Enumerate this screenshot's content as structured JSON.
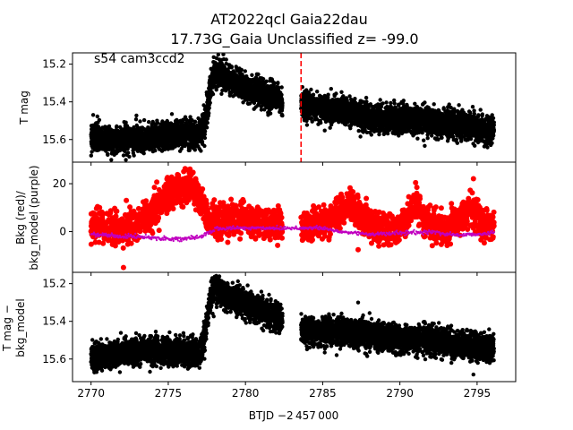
{
  "figure": {
    "title_line1": "AT2022qcl  Gaia22dau",
    "title_line2": "17.73G_Gaia Unclassified z= -99.0",
    "annotation": "s54 cam3ccd2",
    "xlabel": "BTJD −2 457 000"
  },
  "chart_data": [
    {
      "type": "scatter",
      "panel": "top",
      "ylabel": "T mag",
      "y_inverted": true,
      "xlim": [
        2768.8,
        2797.5
      ],
      "ylim": [
        15.72,
        15.14
      ],
      "yticks": [
        15.2,
        15.4,
        15.6
      ],
      "ytick_labels": [
        "15.2",
        "15.4",
        "15.6"
      ],
      "marker_color": "#000000",
      "vline": {
        "x": 2783.6,
        "color": "#ff0000",
        "style": "dashed"
      },
      "series": [
        {
          "segments": [
            {
              "x": [
                2770.0,
                2771.0,
                2772.0,
                2773.0,
                2774.0,
                2775.0,
                2776.0,
                2777.0,
                2777.4,
                2777.7,
                2778.0,
                2778.5,
                2779.0,
                2779.5,
                2780.0,
                2780.5,
                2781.0,
                2781.5,
                2782.0,
                2782.4
              ],
              "y": [
                15.59,
                15.6,
                15.6,
                15.59,
                15.59,
                15.57,
                15.57,
                15.57,
                15.5,
                15.33,
                15.25,
                15.26,
                15.29,
                15.3,
                15.33,
                15.34,
                15.35,
                15.37,
                15.37,
                15.4
              ]
            },
            {
              "x": [
                2783.6,
                2784.5,
                2785.5,
                2786.5,
                2787.5,
                2788.5,
                2789.5,
                2790.5,
                2791.5,
                2792.5,
                2793.5,
                2794.5,
                2795.5,
                2796.1
              ],
              "y": [
                15.41,
                15.43,
                15.44,
                15.45,
                15.47,
                15.48,
                15.49,
                15.49,
                15.5,
                15.51,
                15.52,
                15.53,
                15.55,
                15.55
              ]
            }
          ],
          "scatter": 0.035
        }
      ]
    },
    {
      "type": "scatter",
      "panel": "middle",
      "ylabel_line1": "Bkg (red)/",
      "ylabel_line2": "bkg_model (purple)",
      "xlim": [
        2768.8,
        2797.5
      ],
      "ylim": [
        -17,
        29
      ],
      "yticks": [
        0,
        20
      ],
      "ytick_labels": [
        "0",
        "20"
      ],
      "series": [
        {
          "color": "#ff0000",
          "segments": [
            {
              "x": [
                2770.0,
                2771.0,
                2772.0,
                2773.0,
                2773.7,
                2774.5,
                2775.0,
                2775.7,
                2776.5,
                2777.2,
                2777.6,
                2778.0,
                2779.0,
                2780.0,
                2781.0,
                2782.0,
                2782.4
              ],
              "y": [
                2,
                1,
                1,
                3,
                7,
                12,
                15,
                18,
                18,
                12,
                5,
                4,
                5,
                6,
                4,
                3,
                4
              ]
            },
            {
              "x": [
                2783.6,
                2784.5,
                2785.3,
                2786.0,
                2786.8,
                2787.5,
                2788.5,
                2789.5,
                2790.3,
                2791.0,
                2792.0,
                2793.0,
                2794.0,
                2794.6,
                2795.3,
                2796.1
              ],
              "y": [
                1,
                3,
                4,
                8,
                12,
                6,
                2,
                1,
                4,
                12,
                3,
                1,
                5,
                10,
                3,
                2
              ]
            }
          ],
          "scatter": 3.2,
          "outliers": [
            {
              "x": 2772.1,
              "y": -15
            }
          ]
        },
        {
          "color": "#c000c0",
          "segments": [
            {
              "x": [
                2770.0,
                2771.0,
                2772.0,
                2773.0,
                2774.0,
                2775.0,
                2776.0,
                2777.0,
                2778.0,
                2779.0,
                2780.0,
                2781.0,
                2782.0,
                2783.0,
                2784.0,
                2785.0,
                2786.0,
                2787.0,
                2788.0,
                2789.0,
                2790.0,
                2791.0,
                2792.0,
                2793.0,
                2794.0,
                2795.0,
                2796.1
              ],
              "y": [
                -1,
                -1.5,
                -2,
                -2,
                -2.5,
                -3,
                -3,
                -2.5,
                1,
                1.5,
                1.5,
                1.5,
                1.5,
                1.5,
                1.5,
                1.5,
                0,
                -0.5,
                -1,
                -1,
                -0.5,
                -0.5,
                0,
                -1,
                -1.5,
                -1,
                -0.5
              ]
            }
          ],
          "scatter": 0.4
        }
      ]
    },
    {
      "type": "scatter",
      "panel": "bottom",
      "ylabel_line1": "T mag −",
      "ylabel_line2": "bkg_model",
      "y_inverted": true,
      "xlim": [
        2768.8,
        2797.5
      ],
      "ylim": [
        15.72,
        15.14
      ],
      "yticks": [
        15.2,
        15.4,
        15.6
      ],
      "ytick_labels": [
        "15.2",
        "15.4",
        "15.6"
      ],
      "xticks": [
        2770,
        2775,
        2780,
        2785,
        2790,
        2795
      ],
      "xtick_labels": [
        "2770",
        "2775",
        "2780",
        "2785",
        "2790",
        "2795"
      ],
      "marker_color": "#000000",
      "series": [
        {
          "segments": [
            {
              "x": [
                2770.0,
                2771.0,
                2772.0,
                2773.0,
                2774.0,
                2775.0,
                2776.0,
                2777.0,
                2777.4,
                2777.7,
                2778.0,
                2778.5,
                2779.0,
                2779.5,
                2780.0,
                2780.5,
                2781.0,
                2781.5,
                2782.0,
                2782.4
              ],
              "y": [
                15.59,
                15.58,
                15.57,
                15.56,
                15.55,
                15.55,
                15.56,
                15.57,
                15.46,
                15.29,
                15.23,
                15.25,
                15.27,
                15.29,
                15.31,
                15.33,
                15.35,
                15.36,
                15.37,
                15.4
              ]
            },
            {
              "x": [
                2783.6,
                2784.5,
                2785.5,
                2786.5,
                2787.5,
                2788.5,
                2789.5,
                2790.5,
                2791.5,
                2792.5,
                2793.5,
                2794.5,
                2795.5,
                2796.1
              ],
              "y": [
                15.44,
                15.45,
                15.45,
                15.46,
                15.47,
                15.48,
                15.49,
                15.49,
                15.5,
                15.51,
                15.52,
                15.53,
                15.54,
                15.54
              ]
            }
          ],
          "scatter": 0.035
        }
      ]
    }
  ]
}
